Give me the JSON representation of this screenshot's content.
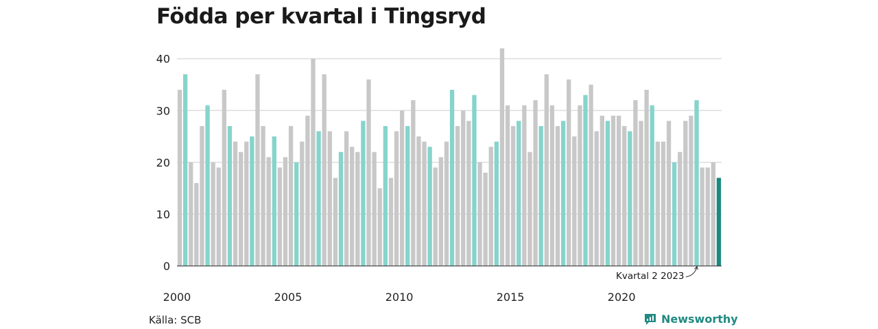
{
  "title": "Födda per kvartal i Tingsryd",
  "source": "Källa: SCB",
  "brand": {
    "name": "Newsworthy",
    "icon": "newsworthy-logo-icon"
  },
  "colors": {
    "highlight": "#86d4cc",
    "default": "#c8c8c8",
    "latest": "#1a8a80",
    "grid": "#dddddd"
  },
  "chart_data": {
    "type": "bar",
    "title": "Födda per kvartal i Tingsryd",
    "xlabel": "",
    "ylabel": "",
    "ylim": [
      0,
      43
    ],
    "yticks": [
      0,
      10,
      20,
      30,
      40
    ],
    "xticks": [
      "2000",
      "2005",
      "2010",
      "2015",
      "2020"
    ],
    "highlight_quarter": 2,
    "grid": true,
    "annotation": "Kvartal 2 2023",
    "series": [
      {
        "start": "2000 Q1",
        "values": [
          34,
          37,
          20,
          16,
          27,
          31,
          20,
          19,
          34,
          27,
          24,
          22,
          24,
          25,
          37,
          27,
          21,
          25,
          19,
          21,
          27,
          20,
          24,
          29,
          40,
          26,
          37,
          26,
          17,
          22,
          26,
          23,
          22,
          28,
          36,
          22,
          15,
          27,
          17,
          26,
          30,
          27,
          32,
          25,
          24,
          23,
          19,
          21,
          24,
          34,
          27,
          30,
          28,
          33,
          20,
          18,
          23,
          24,
          42,
          31,
          27,
          28,
          31,
          22,
          32,
          27,
          37,
          31,
          27,
          28,
          36,
          25,
          31,
          33,
          35,
          26,
          29,
          28,
          29,
          29,
          27,
          26,
          32,
          28,
          34,
          31,
          24,
          24,
          28,
          20,
          22,
          28,
          29,
          32,
          19,
          19,
          20,
          17
        ]
      }
    ]
  }
}
